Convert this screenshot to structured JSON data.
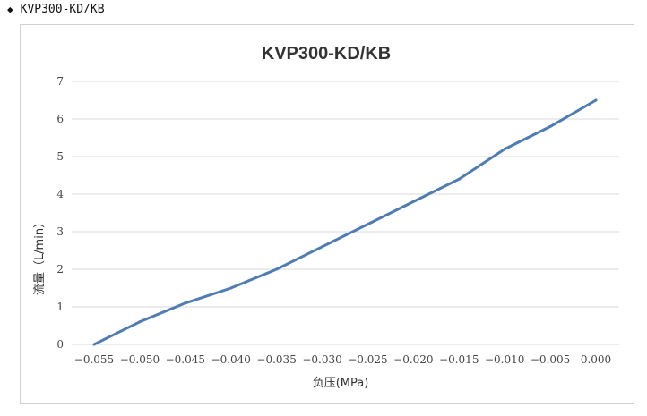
{
  "heading": {
    "bullet": "◆",
    "text": "KVP300-KD/KB"
  },
  "chart_data": {
    "type": "line",
    "title": "KVP300-KD/KB",
    "xlabel": "负压(MPa)",
    "ylabel": "流量（L/min）",
    "categories": [
      "-0.055",
      "-0.050",
      "-0.045",
      "-0.040",
      "-0.035",
      "-0.030",
      "-0.025",
      "-0.020",
      "-0.015",
      "-0.010",
      "-0.005",
      "0.000"
    ],
    "yticks": [
      "0",
      "1",
      "2",
      "3",
      "4",
      "5",
      "6",
      "7"
    ],
    "ylim": [
      0,
      7
    ],
    "grid": true,
    "legend": "none",
    "series": [
      {
        "values": [
          0,
          0.6,
          1.1,
          1.5,
          2.0,
          2.6,
          3.2,
          3.8,
          4.4,
          5.2,
          5.8,
          6.5
        ]
      }
    ],
    "colors": {
      "line": "#4f7db3",
      "grid": "#d9d9d9"
    }
  }
}
